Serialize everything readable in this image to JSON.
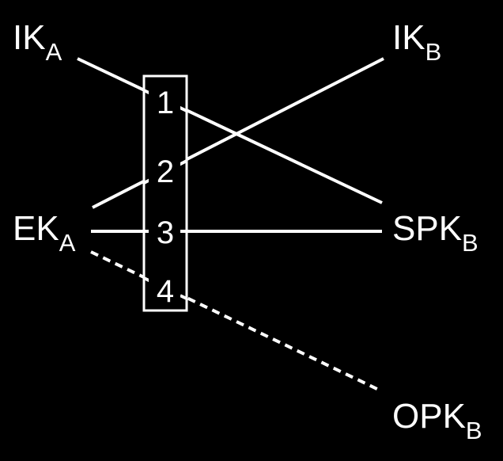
{
  "diagram": {
    "colors": {
      "background": "#000000",
      "foreground": "#ffffff"
    },
    "nodes": {
      "ika": {
        "main": "IK",
        "sub": "A"
      },
      "ikb": {
        "main": "IK",
        "sub": "B"
      },
      "eka": {
        "main": "EK",
        "sub": "A"
      },
      "spkb": {
        "main": "SPK",
        "sub": "B"
      },
      "opkb": {
        "main": "OPK",
        "sub": "B"
      }
    },
    "steps": [
      "1",
      "2",
      "3",
      "4"
    ],
    "connections": [
      {
        "step": "1",
        "from": "IK_A",
        "to": "SPK_B",
        "style": "solid"
      },
      {
        "step": "2",
        "from": "EK_A",
        "to": "IK_B",
        "style": "solid"
      },
      {
        "step": "3",
        "from": "EK_A",
        "to": "SPK_B",
        "style": "solid"
      },
      {
        "step": "4",
        "from": "EK_A",
        "to": "OPK_B",
        "style": "dashed"
      }
    ]
  }
}
